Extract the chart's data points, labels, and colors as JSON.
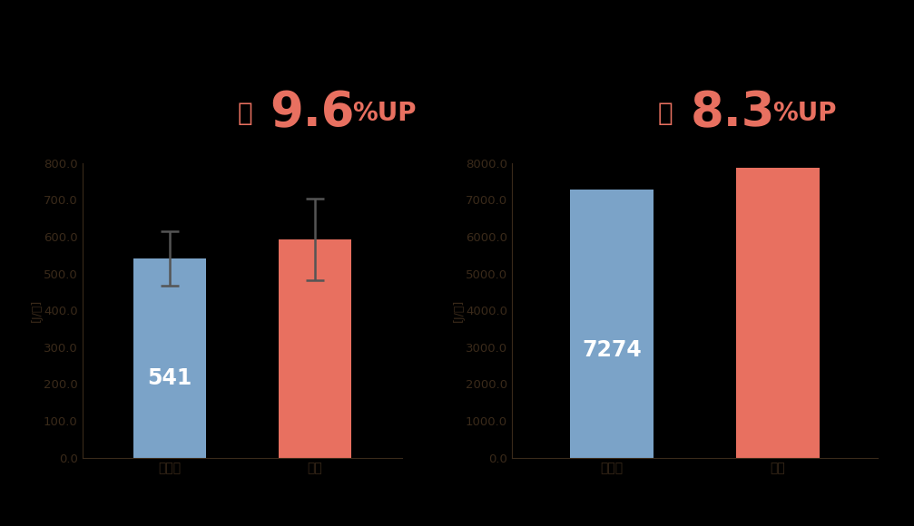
{
  "background_color": "#000000",
  "axes_bg": "#000000",
  "chart1": {
    "categories": [
      "通常米",
      "新米"
    ],
    "values": [
      541,
      593
    ],
    "errors": [
      75,
      110
    ],
    "bar_colors": [
      "#7ba3c8",
      "#e87060"
    ],
    "ylabel": "[J/根]",
    "ylim": [
      0,
      800
    ],
    "yticks": [
      0,
      100,
      200,
      300,
      400,
      500,
      600,
      700,
      800
    ],
    "ytick_labels": [
      "0.0",
      "100.0",
      "200.0",
      "300.0",
      "400.0",
      "500.0",
      "600.0",
      "700.0",
      "800.0"
    ],
    "ann_yaku": "約",
    "ann_num": "9.6",
    "ann_pct": "%UP"
  },
  "chart2": {
    "categories": [
      "通常米",
      "新米"
    ],
    "values": [
      7274,
      7879
    ],
    "bar_colors": [
      "#7ba3c8",
      "#e87060"
    ],
    "ylabel": "[J/根]",
    "ylim": [
      0,
      8000
    ],
    "yticks": [
      0,
      1000,
      2000,
      3000,
      4000,
      5000,
      6000,
      7000,
      8000
    ],
    "ytick_labels": [
      "0.0",
      "1000.0",
      "2000.0",
      "3000.0",
      "4000.0",
      "5000.0",
      "6000.0",
      "7000.0",
      "8000.0"
    ],
    "ann_yaku": "約",
    "ann_num": "8.3",
    "ann_pct": "%UP"
  },
  "annotation_color": "#e87060",
  "tick_label_color": "#3a2a1a",
  "spine_color": "#3a2a1a",
  "bar_label_color": "#ffffff",
  "xlabel_color": "#3a2a1a"
}
